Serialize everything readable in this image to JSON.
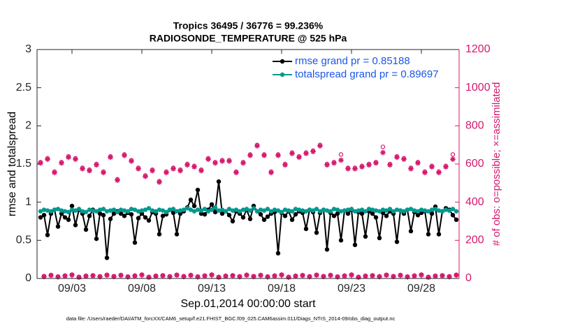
{
  "chart_data": {
    "type": "line",
    "title": "Tropics 36495 / 36776 = 99.236%",
    "subtitle": "RADIOSONDE_TEMPERATURE @ 525 hPa",
    "xlabel": "Sep.01,2014 00:00:00 start",
    "ylabel": "rmse and totalspread",
    "y2label": "# of obs: o=possible; ×=assimilated",
    "footnote": "data file: /Users/raeder/DAI/ATM_forcXX/CAM6_setup/f.e21.FHIST_BGC.f09_025.CAM6assim.011/Diags_NTrS_2014-09/obs_diag_output.nc",
    "legend": "upper right",
    "grid": false,
    "xlim": [
      -0.5,
      29.7
    ],
    "xticks": [
      {
        "value": 2,
        "label": "09/03"
      },
      {
        "value": 7,
        "label": "09/08"
      },
      {
        "value": 12,
        "label": "09/13"
      },
      {
        "value": 17,
        "label": "09/18"
      },
      {
        "value": 22,
        "label": "09/23"
      },
      {
        "value": 27,
        "label": "09/28"
      }
    ],
    "ylim": [
      0,
      3
    ],
    "yticks": [
      0,
      0.5,
      1,
      1.5,
      2,
      2.5,
      3
    ],
    "y2lim": [
      0,
      1200
    ],
    "y2ticks": [
      0,
      200,
      400,
      600,
      800,
      1000,
      1200
    ],
    "y2color": "#d6186e",
    "x": [
      -0.25,
      0,
      0.25,
      0.5,
      0.75,
      1,
      1.25,
      1.5,
      1.75,
      2,
      2.25,
      2.5,
      2.75,
      3,
      3.25,
      3.5,
      3.75,
      4,
      4.25,
      4.5,
      4.75,
      5,
      5.25,
      5.5,
      5.75,
      6,
      6.25,
      6.5,
      6.75,
      7,
      7.25,
      7.5,
      7.75,
      8,
      8.25,
      8.5,
      8.75,
      9,
      9.25,
      9.5,
      9.75,
      10,
      10.25,
      10.5,
      10.75,
      11,
      11.25,
      11.5,
      11.75,
      12,
      12.25,
      12.5,
      12.75,
      13,
      13.25,
      13.5,
      13.75,
      14,
      14.25,
      14.5,
      14.75,
      15,
      15.25,
      15.5,
      15.75,
      16,
      16.25,
      16.5,
      16.75,
      17,
      17.25,
      17.5,
      17.75,
      18,
      18.25,
      18.5,
      18.75,
      19,
      19.25,
      19.5,
      19.75,
      20,
      20.25,
      20.5,
      20.75,
      21,
      21.25,
      21.5,
      21.75,
      22,
      22.25,
      22.5,
      22.75,
      23,
      23.25,
      23.5,
      23.75,
      24,
      24.25,
      24.5,
      24.75,
      25,
      25.25,
      25.5,
      25.75,
      26,
      26.25,
      26.5,
      26.75,
      27,
      27.25,
      27.5,
      27.75,
      28,
      28.25,
      28.5,
      28.75,
      29,
      29.25,
      29.5
    ],
    "series": [
      {
        "name": "rmse grand pr = 0.85188",
        "color": "#000000",
        "marker": "dot",
        "linestyle": "solid",
        "values": [
          0.8,
          0.83,
          0.57,
          0.85,
          0.9,
          0.68,
          0.85,
          0.8,
          0.77,
          0.95,
          0.7,
          0.9,
          0.85,
          0.64,
          0.82,
          0.9,
          0.52,
          0.85,
          0.83,
          0.27,
          0.78,
          0.85,
          0.88,
          0.85,
          0.82,
          0.86,
          0.84,
          0.47,
          0.79,
          0.85,
          0.8,
          0.76,
          0.87,
          0.85,
          0.58,
          0.82,
          0.84,
          0.9,
          0.86,
          0.58,
          0.85,
          0.88,
          0.93,
          1.03,
          0.95,
          1.16,
          0.85,
          0.84,
          0.9,
          0.97,
          0.87,
          1.27,
          0.85,
          0.88,
          0.83,
          0.75,
          0.88,
          0.85,
          0.8,
          0.9,
          0.78,
          0.95,
          0.88,
          0.84,
          0.77,
          0.81,
          0.85,
          0.87,
          0.33,
          0.86,
          0.82,
          0.88,
          0.77,
          0.84,
          0.88,
          0.86,
          0.65,
          0.9,
          0.87,
          0.6,
          0.86,
          0.9,
          0.38,
          0.86,
          0.82,
          0.85,
          0.5,
          0.89,
          0.85,
          0.9,
          0.44,
          0.87,
          0.85,
          0.55,
          0.88,
          0.85,
          0.8,
          0.53,
          0.86,
          0.82,
          0.88,
          0.85,
          0.48,
          0.89,
          0.85,
          0.9,
          0.62,
          0.87,
          0.83,
          0.86,
          0.88,
          0.58,
          0.85,
          0.94,
          0.58,
          0.88,
          0.92,
          0.9,
          0.83,
          0.77
        ]
      },
      {
        "name": "totalspread grand pr = 0.89697",
        "color": "#009990",
        "marker": "dot",
        "linestyle": "solid",
        "values": [
          0.88,
          0.9,
          0.89,
          0.88,
          0.9,
          0.91,
          0.89,
          0.88,
          0.87,
          0.9,
          0.89,
          0.91,
          0.88,
          0.87,
          0.9,
          0.89,
          0.88,
          0.9,
          0.91,
          0.88,
          0.89,
          0.9,
          0.87,
          0.9,
          0.89,
          0.88,
          0.91,
          0.9,
          0.88,
          0.89,
          0.9,
          0.92,
          0.89,
          0.88,
          0.9,
          0.89,
          0.87,
          0.9,
          0.91,
          0.88,
          0.89,
          0.9,
          0.92,
          0.9,
          0.88,
          0.9,
          0.89,
          0.91,
          0.88,
          0.9,
          0.93,
          0.89,
          0.9,
          0.88,
          0.91,
          0.89,
          0.9,
          0.88,
          0.9,
          0.91,
          0.89,
          0.92,
          0.88,
          0.9,
          0.89,
          0.91,
          0.88,
          0.9,
          0.89,
          0.87,
          0.9,
          0.89,
          0.88,
          0.91,
          0.9,
          0.89,
          0.88,
          0.9,
          0.89,
          0.91,
          0.88,
          0.9,
          0.89,
          0.88,
          0.91,
          0.9,
          0.88,
          0.89,
          0.9,
          0.91,
          0.88,
          0.89,
          0.9,
          0.88,
          0.91,
          0.9,
          0.89,
          0.88,
          0.9,
          0.89,
          0.91,
          0.88,
          0.9,
          0.89,
          0.88,
          0.9,
          0.91,
          0.89,
          0.88,
          0.9,
          0.89,
          0.88,
          0.9,
          0.91,
          0.89,
          0.88,
          0.9,
          0.89,
          0.91,
          0.88
        ]
      },
      {
        "axis": "y2",
        "color": "#d6186e",
        "marker": "circle",
        "linestyle": "none",
        "values": [
          610,
          12,
          630,
          18,
          560,
          10,
          610,
          15,
          640,
          20,
          630,
          8,
          580,
          14,
          570,
          16,
          600,
          11,
          560,
          19,
          640,
          12,
          520,
          18,
          650,
          10,
          620,
          15,
          580,
          20,
          540,
          8,
          570,
          14,
          510,
          16,
          560,
          11,
          580,
          19,
          570,
          12,
          600,
          18,
          590,
          10,
          570,
          15,
          630,
          20,
          610,
          8,
          620,
          14,
          620,
          16,
          560,
          11,
          610,
          19,
          650,
          12,
          700,
          18,
          650,
          10,
          560,
          15,
          650,
          20,
          600,
          8,
          660,
          14,
          640,
          16,
          660,
          11,
          670,
          19,
          700,
          12,
          600,
          18,
          610,
          10,
          650,
          15,
          580,
          20,
          580,
          8,
          590,
          14,
          600,
          16,
          610,
          11,
          690,
          19,
          600,
          12,
          640,
          18,
          630,
          10,
          580,
          15,
          610,
          20,
          560,
          8,
          590,
          14,
          560,
          16,
          590,
          11,
          650,
          19
        ]
      },
      {
        "axis": "y2",
        "color": "#d6186e",
        "marker": "asterisk",
        "linestyle": "none",
        "values": [
          605,
          10,
          625,
          16,
          555,
          8,
          605,
          13,
          635,
          18,
          625,
          6,
          575,
          12,
          565,
          14,
          595,
          9,
          555,
          17,
          635,
          10,
          515,
          16,
          645,
          8,
          615,
          13,
          575,
          18,
          535,
          6,
          565,
          12,
          505,
          14,
          555,
          9,
          575,
          17,
          565,
          10,
          595,
          16,
          585,
          8,
          565,
          13,
          625,
          18,
          605,
          6,
          615,
          12,
          615,
          14,
          555,
          9,
          605,
          17,
          645,
          10,
          695,
          16,
          645,
          8,
          555,
          13,
          645,
          18,
          595,
          6,
          655,
          12,
          635,
          16,
          655,
          9,
          665,
          17,
          695,
          10,
          595,
          16,
          605,
          8,
          620,
          13,
          575,
          18,
          575,
          6,
          585,
          12,
          595,
          14,
          605,
          9,
          660,
          17,
          595,
          10,
          635,
          16,
          625,
          8,
          575,
          13,
          605,
          18,
          555,
          6,
          585,
          12,
          555,
          14,
          585,
          9,
          625,
          17
        ]
      }
    ]
  }
}
